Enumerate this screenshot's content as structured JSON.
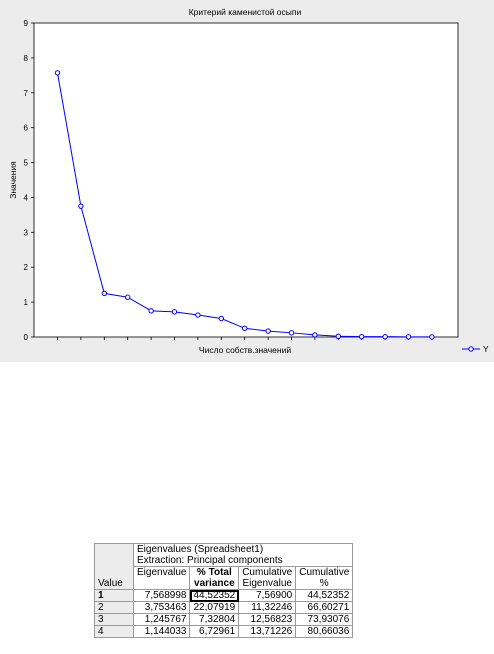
{
  "chart_data": {
    "type": "line",
    "title": "Критерий каменистой осыпи",
    "xlabel": "Число собств.значений",
    "ylabel": "Значения",
    "ylim": [
      0,
      9
    ],
    "yticks": [
      "0",
      "1",
      "2",
      "3",
      "4",
      "5",
      "6",
      "7",
      "8",
      "9"
    ],
    "grid": false,
    "legend_position": "bottom-right",
    "series": [
      {
        "name": "Y",
        "color": "#0000ff",
        "values": [
          7.57,
          3.75,
          1.25,
          1.14,
          0.75,
          0.72,
          0.63,
          0.53,
          0.25,
          0.17,
          0.12,
          0.06,
          0.02,
          0.01,
          0.01,
          0.005,
          0.003
        ]
      }
    ]
  },
  "table": {
    "title": "Eigenvalues (Spreadsheet1)",
    "subtitle": "Extraction: Principal components",
    "row_header": "Value",
    "columns": [
      "Eigenvalue",
      "% Total variance",
      "Cumulative Eigenvalue",
      "Cumulative %"
    ],
    "columns_split": [
      [
        "Eigenvalue",
        ""
      ],
      [
        "% Total",
        "variance"
      ],
      [
        "Cumulative",
        "Eigenvalue"
      ],
      [
        "Cumulative",
        "%"
      ]
    ],
    "rows": [
      {
        "label": "1",
        "cells": [
          "7,568998",
          "44,52352",
          "7,56900",
          "44,52352"
        ]
      },
      {
        "label": "2",
        "cells": [
          "3,753463",
          "22,07919",
          "11,32246",
          "66,60271"
        ]
      },
      {
        "label": "3",
        "cells": [
          "1,245767",
          "7,32804",
          "12,56823",
          "73,93076"
        ]
      },
      {
        "label": "4",
        "cells": [
          "1,144033",
          "6,72961",
          "13,71226",
          "80,66036"
        ]
      }
    ]
  }
}
